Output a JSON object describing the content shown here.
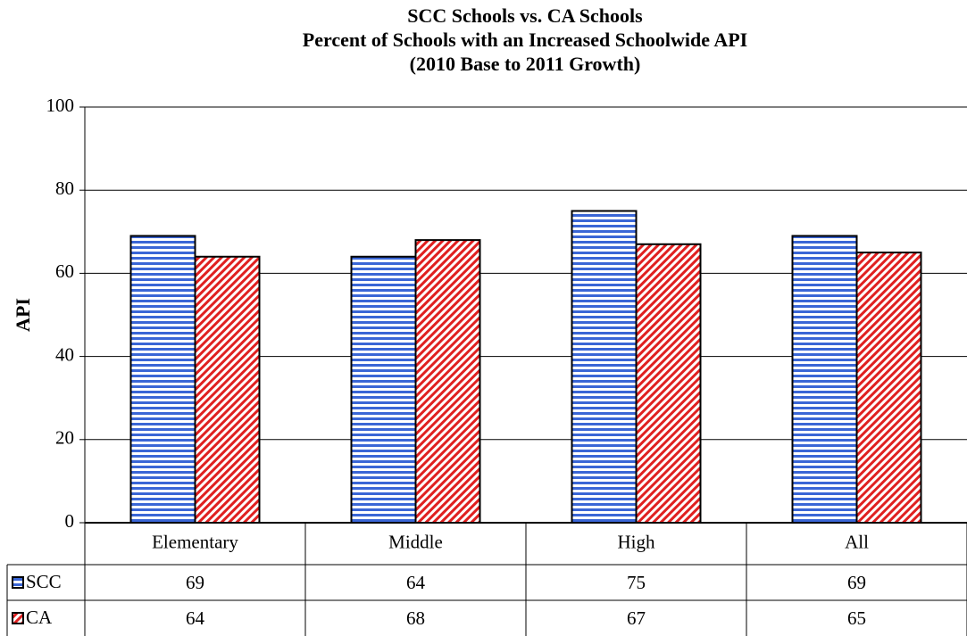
{
  "chart_data": {
    "type": "bar",
    "title": [
      "SCC Schools vs. CA Schools",
      "Percent of Schools with an Increased Schoolwide API",
      "(2010 Base to 2011 Growth)"
    ],
    "ylabel": "API",
    "categories": [
      "Elementary",
      "Middle",
      "High",
      "All"
    ],
    "series": [
      {
        "name": "SCC",
        "color": "#3a66d6",
        "values": [
          69,
          64,
          75,
          69
        ]
      },
      {
        "name": "CA",
        "color": "#e02020",
        "values": [
          64,
          68,
          67,
          65
        ]
      }
    ],
    "ylim": [
      0,
      100
    ],
    "yticks": [
      0,
      20,
      40,
      60,
      80,
      100
    ],
    "grid": true,
    "data_table": true
  }
}
